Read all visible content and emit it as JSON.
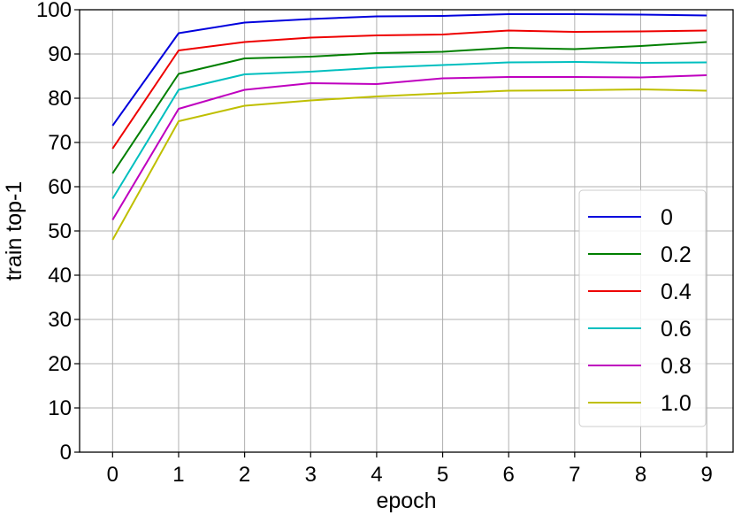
{
  "chart_data": {
    "type": "line",
    "xlabel": "epoch",
    "ylabel": "train top-1",
    "x": [
      0,
      1,
      2,
      3,
      4,
      5,
      6,
      7,
      8,
      9
    ],
    "xlim": [
      -0.5,
      9.4
    ],
    "ylim": [
      0,
      100
    ],
    "xticks": [
      0,
      1,
      2,
      3,
      4,
      5,
      6,
      7,
      8,
      9
    ],
    "yticks": [
      0,
      10,
      20,
      30,
      40,
      50,
      60,
      70,
      80,
      90,
      100
    ],
    "grid": true,
    "legend_position": "center-right",
    "series": [
      {
        "name": "0",
        "color": "#0000dd",
        "values": [
          73.8,
          94.7,
          97.1,
          97.9,
          98.5,
          98.6,
          99.0,
          99.0,
          98.9,
          98.7
        ]
      },
      {
        "name": "0.2",
        "color": "#007f00",
        "values": [
          63.0,
          85.5,
          89.0,
          89.4,
          90.2,
          90.5,
          91.4,
          91.1,
          91.8,
          92.7
        ]
      },
      {
        "name": "0.4",
        "color": "#ee0000",
        "values": [
          68.6,
          90.8,
          92.7,
          93.7,
          94.2,
          94.4,
          95.3,
          95.0,
          95.1,
          95.3
        ]
      },
      {
        "name": "0.6",
        "color": "#00bfbf",
        "values": [
          57.3,
          81.9,
          85.4,
          86.0,
          86.9,
          87.5,
          88.1,
          88.2,
          88.0,
          88.1
        ]
      },
      {
        "name": "0.8",
        "color": "#bf00bf",
        "values": [
          52.5,
          77.6,
          81.9,
          83.4,
          83.2,
          84.5,
          84.8,
          84.8,
          84.7,
          85.2
        ]
      },
      {
        "name": "1.0",
        "color": "#bfbf00",
        "values": [
          48.0,
          74.8,
          78.3,
          79.5,
          80.4,
          81.1,
          81.7,
          81.8,
          82.0,
          81.7
        ]
      }
    ]
  }
}
